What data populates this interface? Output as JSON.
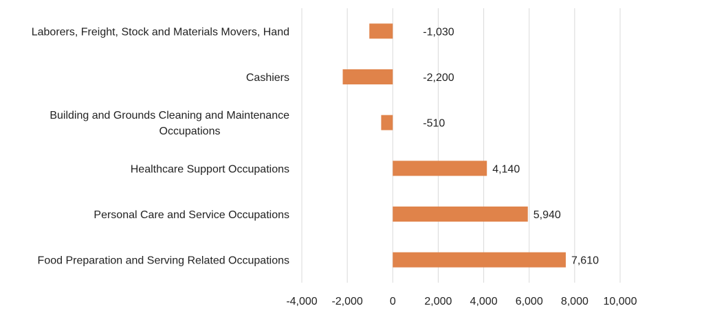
{
  "chart_data": {
    "type": "bar",
    "orientation": "horizontal",
    "categories": [
      [
        "Laborers, Freight, Stock and Materials Movers, Hand"
      ],
      [
        "Cashiers"
      ],
      [
        "Building and Grounds Cleaning and Maintenance",
        "Occupations"
      ],
      [
        "Healthcare Support Occupations"
      ],
      [
        "Personal Care and Service Occupations"
      ],
      [
        "Food Preparation and Serving Related Occupations"
      ]
    ],
    "values": [
      -1030,
      -2200,
      -510,
      4140,
      5940,
      7610
    ],
    "data_labels": [
      "-1,030",
      "-2,200",
      "-510",
      "4,140",
      "5,940",
      "7,610"
    ],
    "xlim": [
      -4000,
      10000
    ],
    "x_ticks": [
      -4000,
      -2000,
      0,
      2000,
      4000,
      6000,
      8000,
      10000
    ],
    "x_tick_labels": [
      "-4,000",
      "-2,000",
      "0",
      "2,000",
      "4,000",
      "6,000",
      "8,000",
      "10,000"
    ],
    "title": "",
    "xlabel": "",
    "ylabel": "",
    "grid": true,
    "legend": false,
    "bar_color": "#E0834A"
  }
}
